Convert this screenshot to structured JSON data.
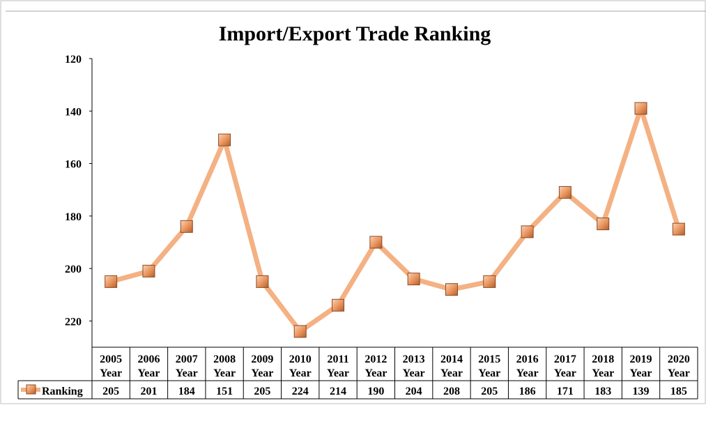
{
  "chart_data": {
    "type": "line",
    "title": "Import/Export Trade Ranking",
    "categories": [
      "2005 Year",
      "2006 Year",
      "2007 Year",
      "2008 Year",
      "2009 Year",
      "2010 Year",
      "2011 Year",
      "2012 Year",
      "2013 Year",
      "2014 Year",
      "2015 Year",
      "2016 Year",
      "2017 Year",
      "2018 Year",
      "2019 Year",
      "2020 Year"
    ],
    "series": [
      {
        "name": "Ranking",
        "values": [
          205,
          201,
          184,
          151,
          205,
          224,
          214,
          190,
          204,
          208,
          205,
          186,
          171,
          183,
          139,
          185
        ]
      }
    ],
    "yticks": [
      120,
      140,
      160,
      180,
      200,
      220
    ],
    "ylim": [
      120,
      230
    ],
    "y_reversed": true,
    "data_table": true,
    "grid": false,
    "colors": {
      "line": "#F4B183",
      "marker": "#E8925B",
      "marker_edge": "#8C4A22"
    }
  }
}
